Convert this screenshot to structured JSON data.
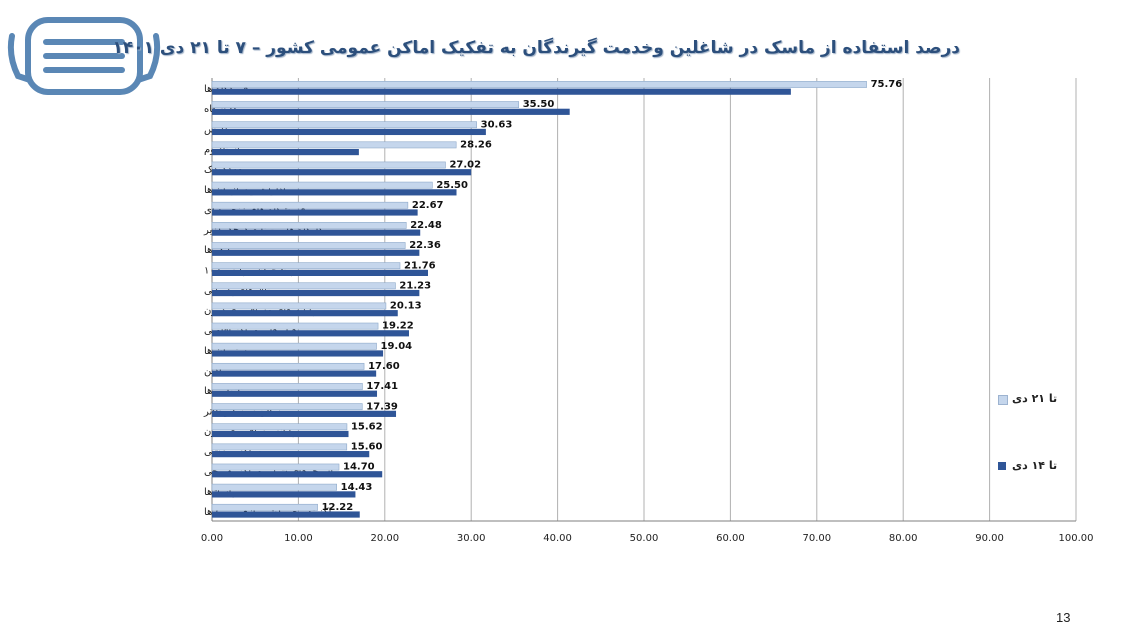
{
  "title": "درصد استفاده از ماسک در شاغلین وخدمت گیرندگان به تفکیک اماکن عمومی کشور  – ۷ تا ۲۱ دی ۱۴۰۱",
  "page_number": "13",
  "colors": {
    "series_light": "#c5d6ec",
    "series_dark": "#2f5597",
    "grid": "#b0b0b0",
    "title": "#2c4f7c"
  },
  "icons": {
    "logo": "face-mask-icon"
  },
  "chart_data": {
    "type": "bar",
    "orientation": "horizontal",
    "categories": [
      "فرودگاه ها",
      "دانشگاه",
      "مدارس",
      "استادیوم",
      "مهدکودک",
      "ادارات و سازمان ها",
      "فروشگاه های زنجیره ای",
      "کارگاه ها و صنایع کوچک (زیر",
      "بانک ها",
      "پیشخوان و پلیس+۱۰",
      "تالارهای پذیرایی",
      "پایانه های مسافربری درون",
      "هتل ها و مراکز اقامتی",
      "رستوران ها",
      "میادین",
      "نانوایی ها",
      "سالن سینما و تئاتر",
      "پایانه مسافربری برون",
      "مراکز ورزشی",
      "استخرهای شنا و مراکز تفریحی",
      "پاسآژها",
      "مراکز تفریحی (شهربازی و ...) ها"
    ],
    "series": [
      {
        "name": "تا ۲۱ دی",
        "values": [
          75.76,
          35.5,
          30.63,
          28.26,
          27.02,
          25.5,
          22.67,
          22.48,
          22.36,
          21.76,
          21.23,
          20.13,
          19.22,
          19.04,
          17.6,
          17.41,
          17.39,
          15.62,
          15.6,
          14.7,
          14.43,
          12.22
        ],
        "labels": [
          "75.76",
          "35.50",
          "30.63",
          "28.26",
          "27.02",
          "25.50",
          "22.67",
          "22.48",
          "22.36",
          "21.76",
          "21.23",
          "20.13",
          "19.22",
          "19.04",
          "17.60",
          "17.41",
          "17.39",
          "15.62",
          "15.60",
          "14.70",
          "14.43",
          "12.22"
        ]
      },
      {
        "name": "تا ۱۴ دی",
        "values": [
          67.0,
          41.4,
          31.7,
          17.0,
          30.0,
          28.3,
          23.8,
          24.1,
          24.0,
          25.0,
          24.0,
          21.5,
          22.8,
          19.8,
          19.0,
          19.1,
          21.3,
          15.8,
          18.2,
          19.7,
          16.6,
          17.1
        ]
      }
    ],
    "xlim": [
      0,
      100
    ],
    "xticks": [
      "0.00",
      "10.00",
      "20.00",
      "30.00",
      "40.00",
      "50.00",
      "60.00",
      "70.00",
      "80.00",
      "90.00",
      "100.00"
    ],
    "grid": true,
    "legend_position": "right"
  }
}
